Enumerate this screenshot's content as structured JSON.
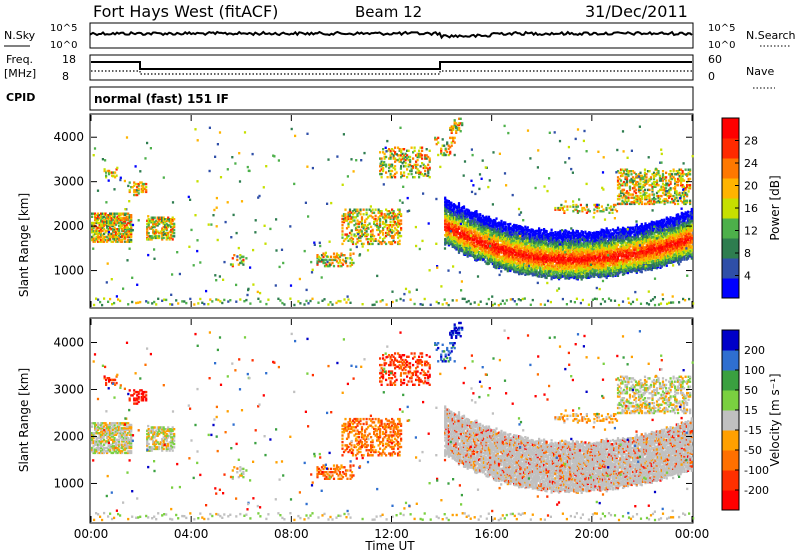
{
  "header": {
    "station": "Fort Hays West (fitACF)",
    "beam": "Beam 12",
    "date": "31/Dec/2011"
  },
  "summary": {
    "nsky_label": "N.Sky",
    "nsearch_label": "N.Search",
    "freq_label_1": "Freq.",
    "freq_label_2": "[MHz]",
    "nave_label": "Nave",
    "cpid_label": "CPID",
    "cpid_text": "normal (fast) 151 IF",
    "noise_ticks": [
      "10^5",
      "10^0"
    ],
    "freq_ticks": [
      "18",
      "8"
    ],
    "nave_ticks": [
      "60",
      "0"
    ]
  },
  "colors": {
    "power": [
      "#0000ff",
      "#2f4fa8",
      "#2e7d4f",
      "#4db04a",
      "#c6e000",
      "#ffb400",
      "#ff7800",
      "#ff2a00",
      "#ff0000"
    ],
    "velocity": [
      "#0000c8",
      "#2f6fd0",
      "#3aa040",
      "#7ad040",
      "#c0c0c0",
      "#ffa000",
      "#ff7000",
      "#ff3000",
      "#ff0000"
    ]
  },
  "chart_data": [
    {
      "type": "heatmap",
      "panel": "power",
      "ylabel": "Slant Range [km]",
      "yticks": [
        "1000",
        "2000",
        "3000",
        "4000"
      ],
      "ylim": [
        180,
        4500
      ],
      "colorbar_label": "Power [dB]",
      "colorbar_ticks": [
        "4",
        "8",
        "12",
        "16",
        "20",
        "24",
        "28"
      ],
      "clim": [
        0,
        32
      ]
    },
    {
      "type": "heatmap",
      "panel": "velocity",
      "ylabel": "Slant Range [km]",
      "yticks": [
        "1000",
        "2000",
        "3000",
        "4000"
      ],
      "ylim": [
        180,
        4500
      ],
      "colorbar_label": "Velocity [m s⁻¹]",
      "colorbar_ticks": [
        "200",
        "100",
        "50",
        "15",
        "-15",
        "-50",
        "-100",
        "-200"
      ]
    },
    {
      "type": "axis",
      "xlabel": "Time UT",
      "xticks": [
        "00:00",
        "04:00",
        "08:00",
        "12:00",
        "16:00",
        "20:00",
        "00:00"
      ],
      "xlim": [
        0,
        24
      ]
    }
  ]
}
